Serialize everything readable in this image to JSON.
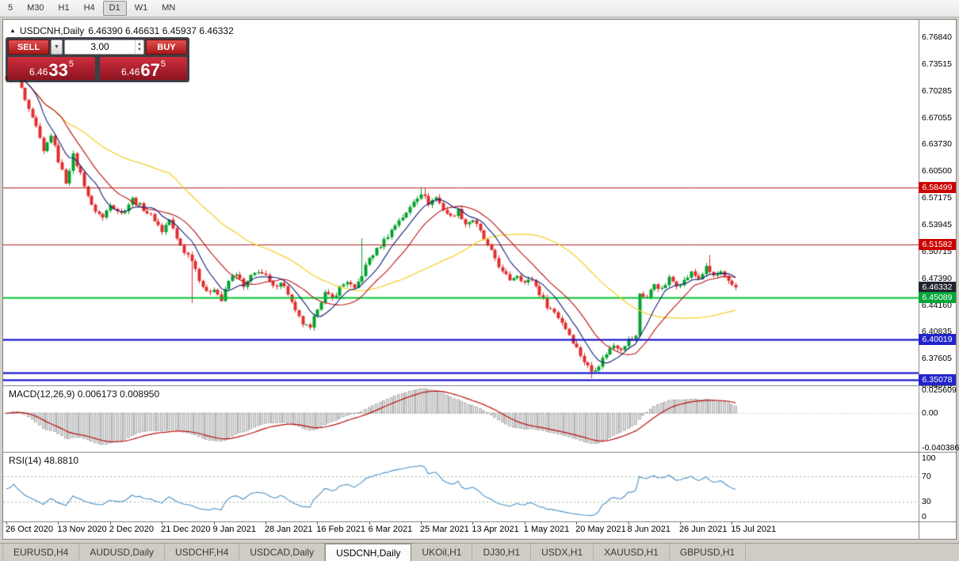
{
  "toolbar": {
    "timeframes": [
      "5",
      "M30",
      "H1",
      "H4",
      "D1",
      "W1",
      "MN"
    ],
    "active_timeframe": "D1"
  },
  "icons": {
    "title_marker": "▲",
    "chevron_down": "▼",
    "spinner_up": "▲",
    "spinner_down": "▼"
  },
  "chart": {
    "symbol_period": "USDCNH,Daily",
    "ohlc": "6.46390 6.46631 6.45937 6.46332"
  },
  "trade_panel": {
    "sell_label": "SELL",
    "buy_label": "BUY",
    "volume": "3.00",
    "sell_price": {
      "prefix": "6.46",
      "big": "33",
      "sup": "5"
    },
    "buy_price": {
      "prefix": "6.46",
      "big": "67",
      "sup": "5"
    }
  },
  "price_axis": {
    "ticks": [
      "6.76840",
      "6.73515",
      "6.70285",
      "6.67055",
      "6.63730",
      "6.60500",
      "6.57175",
      "6.53945",
      "6.50715",
      "6.47390",
      "6.44160",
      "6.40835",
      "6.37605",
      "6.34375"
    ]
  },
  "levels": [
    {
      "label": "6.58499",
      "value": 6.58499,
      "kind": "resistance-line",
      "line_color": "#b22222",
      "tag_color": "#cc0000",
      "width": 1
    },
    {
      "label": "6.51582",
      "value": 6.51582,
      "kind": "resistance-line",
      "line_color": "#b22222",
      "tag_color": "#cc0000",
      "width": 1
    },
    {
      "label": "6.46332",
      "value": 6.46332,
      "kind": "current-price",
      "line_color": null,
      "tag_color": "#20242e",
      "width": 0
    },
    {
      "label": "6.45089",
      "value": 6.45089,
      "kind": "support-line",
      "line_color": "#00c030",
      "tag_color": "#00a637",
      "width": 2
    },
    {
      "label": "6.40019",
      "value": 6.40019,
      "kind": "support-line",
      "line_color": "#0000cc",
      "tag_color": "#2323cc",
      "width": 2
    },
    {
      "label": null,
      "value": 6.3597,
      "kind": "support-zone-line",
      "line_color": "#0000cc",
      "tag_color": null,
      "width": 2
    },
    {
      "label": "6.35078",
      "value": 6.35078,
      "kind": "support-line",
      "line_color": "#0000cc",
      "tag_color": "#2323cc",
      "width": 2
    }
  ],
  "macd": {
    "label": "MACD(12,26,9) 0.006173 0.008950",
    "tick_labels": [
      "0.025609",
      "0.00",
      "-0.040386"
    ]
  },
  "rsi": {
    "label": "RSI(14) 48.8810",
    "tick_labels": [
      "100",
      "70",
      "30",
      "0"
    ]
  },
  "time_axis": [
    "26 Oct 2020",
    "13 Nov 2020",
    "2 Dec 2020",
    "21 Dec 2020",
    "9 Jan 2021",
    "28 Jan 2021",
    "16 Feb 2021",
    "6 Mar 2021",
    "25 Mar 2021",
    "13 Apr 2021",
    "1 May 2021",
    "20 May 2021",
    "8 Jun 2021",
    "26 Jun 2021",
    "15 Jul 2021"
  ],
  "tabs": {
    "items": [
      "EURUSD,H4",
      "AUDUSD,Daily",
      "USDCHF,H4",
      "USDCAD,Daily",
      "USDCNH,Daily",
      "UKOil,H1",
      "DJ30,H1",
      "USDX,H1",
      "XAUUSD,H1",
      "GBPUSD,H1"
    ],
    "active": "USDCNH,Daily"
  },
  "colors": {
    "candle_up": "#05a12e",
    "candle_down": "#e12e2e",
    "ma_short": "#12207a",
    "ma_mid": "#b90f0f",
    "ma_long": "#f0cf1f",
    "macd_signal": "#b90f0f",
    "macd_hist_fill": "#dadada",
    "macd_hist_stroke": "#8f8f8f",
    "rsi_line": "#4a90c4",
    "rsi_levels": "#9cb89c"
  },
  "chart_data": {
    "type": "candlestick",
    "symbol": "USDCNH",
    "timeframe": "Daily",
    "bars": 198,
    "bars_per_label": 14,
    "last_close": 6.46332,
    "close_waypoints": [
      [
        0,
        6.715
      ],
      [
        2,
        6.733
      ],
      [
        4,
        6.705
      ],
      [
        6,
        6.678
      ],
      [
        8,
        6.658
      ],
      [
        10,
        6.628
      ],
      [
        12,
        6.65
      ],
      [
        14,
        6.618
      ],
      [
        16,
        6.592
      ],
      [
        18,
        6.624
      ],
      [
        20,
        6.602
      ],
      [
        23,
        6.562
      ],
      [
        26,
        6.548
      ],
      [
        28,
        6.566
      ],
      [
        31,
        6.553
      ],
      [
        34,
        6.571
      ],
      [
        37,
        6.559
      ],
      [
        40,
        6.546
      ],
      [
        42,
        6.532
      ],
      [
        44,
        6.546
      ],
      [
        46,
        6.522
      ],
      [
        48,
        6.507
      ],
      [
        50,
        6.498
      ],
      [
        52,
        6.474
      ],
      [
        54,
        6.456
      ],
      [
        56,
        6.463
      ],
      [
        58,
        6.447
      ],
      [
        60,
        6.471
      ],
      [
        62,
        6.481
      ],
      [
        64,
        6.463
      ],
      [
        66,
        6.476
      ],
      [
        68,
        6.484
      ],
      [
        70,
        6.476
      ],
      [
        72,
        6.463
      ],
      [
        74,
        6.471
      ],
      [
        76,
        6.456
      ],
      [
        78,
        6.433
      ],
      [
        80,
        6.419
      ],
      [
        82,
        6.412
      ],
      [
        84,
        6.439
      ],
      [
        86,
        6.456
      ],
      [
        88,
        6.449
      ],
      [
        90,
        6.463
      ],
      [
        92,
        6.471
      ],
      [
        94,
        6.46
      ],
      [
        96,
        6.479
      ],
      [
        98,
        6.499
      ],
      [
        100,
        6.509
      ],
      [
        102,
        6.521
      ],
      [
        104,
        6.533
      ],
      [
        106,
        6.546
      ],
      [
        108,
        6.553
      ],
      [
        110,
        6.569
      ],
      [
        112,
        6.579
      ],
      [
        114,
        6.566
      ],
      [
        116,
        6.573
      ],
      [
        118,
        6.559
      ],
      [
        120,
        6.549
      ],
      [
        122,
        6.557
      ],
      [
        124,
        6.541
      ],
      [
        126,
        6.546
      ],
      [
        128,
        6.531
      ],
      [
        130,
        6.513
      ],
      [
        132,
        6.499
      ],
      [
        134,
        6.481
      ],
      [
        136,
        6.473
      ],
      [
        138,
        6.479
      ],
      [
        140,
        6.469
      ],
      [
        142,
        6.473
      ],
      [
        144,
        6.456
      ],
      [
        146,
        6.441
      ],
      [
        148,
        6.433
      ],
      [
        150,
        6.421
      ],
      [
        152,
        6.406
      ],
      [
        154,
        6.389
      ],
      [
        156,
        6.373
      ],
      [
        158,
        6.361
      ],
      [
        160,
        6.369
      ],
      [
        162,
        6.383
      ],
      [
        164,
        6.393
      ],
      [
        166,
        6.389
      ],
      [
        168,
        6.399
      ],
      [
        170,
        6.403
      ],
      [
        171,
        6.456
      ],
      [
        173,
        6.45
      ],
      [
        175,
        6.468
      ],
      [
        177,
        6.46
      ],
      [
        179,
        6.474
      ],
      [
        181,
        6.467
      ],
      [
        183,
        6.471
      ],
      [
        185,
        6.481
      ],
      [
        187,
        6.474
      ],
      [
        189,
        6.487
      ],
      [
        191,
        6.477
      ],
      [
        193,
        6.481
      ],
      [
        195,
        6.469
      ],
      [
        197,
        6.46332
      ]
    ],
    "wick_extremes": [
      {
        "i": 1,
        "high": 6.7455
      },
      {
        "i": 50,
        "low": 6.444
      },
      {
        "i": 96,
        "high": 6.523
      },
      {
        "i": 112,
        "high": 6.5855
      },
      {
        "i": 113,
        "high": 6.584
      },
      {
        "i": 158,
        "low": 6.3525
      },
      {
        "i": 190,
        "high": 6.503
      }
    ],
    "overlays": [
      {
        "name": "ma-short",
        "period": 8
      },
      {
        "name": "ma-mid",
        "period": 16
      },
      {
        "name": "ma-long",
        "period": 45
      }
    ],
    "macd_params": {
      "fast": 12,
      "slow": 26,
      "signal": 9
    },
    "rsi_params": {
      "period": 14
    }
  }
}
